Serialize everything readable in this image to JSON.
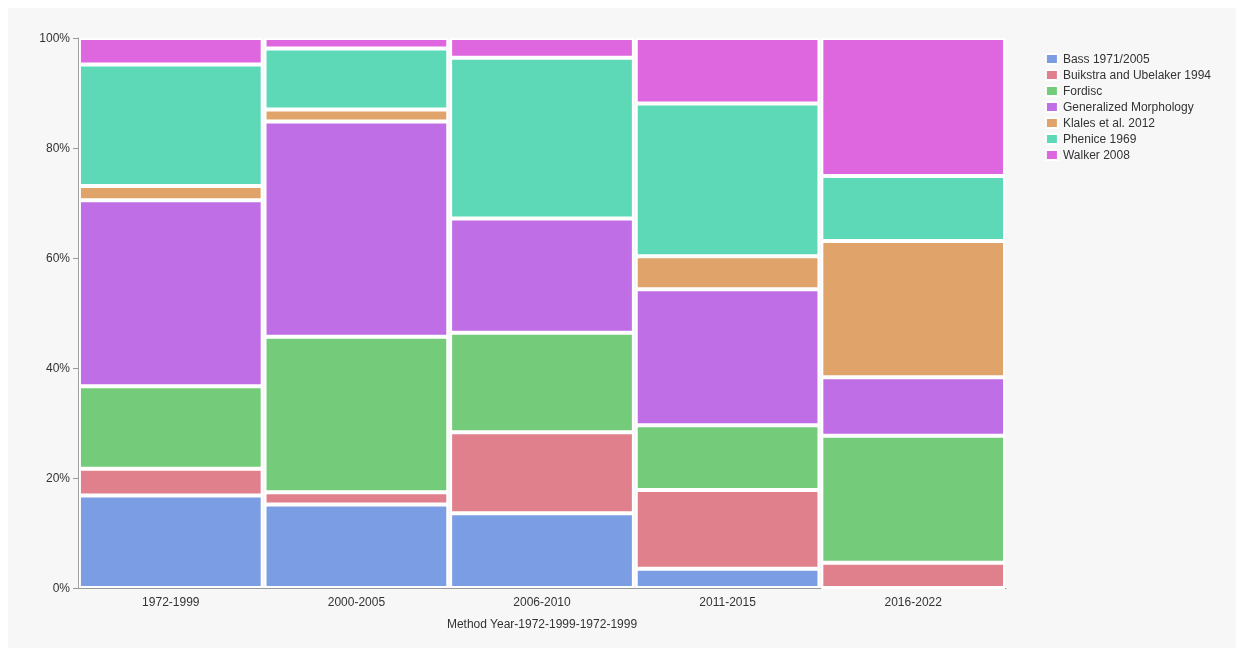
{
  "chart_data": {
    "type": "bar",
    "stacked": true,
    "xlabel": "Method Year-1972-1999-1972-1999",
    "categories": [
      "1972-1999",
      "2000-2005",
      "2006-2010",
      "2011-2015",
      "2016-2022"
    ],
    "series": [
      {
        "name": "Bass 1971/2005",
        "color": "#7b9de3",
        "values": [
          16.8,
          15.2,
          13.6,
          3.5,
          0
        ]
      },
      {
        "name": "Buikstra and Ubelaker 1994",
        "color": "#e0808c",
        "values": [
          4.9,
          2.2,
          14.7,
          14.3,
          4.6
        ]
      },
      {
        "name": "Fordisc",
        "color": "#74cc7a",
        "values": [
          15.0,
          28.3,
          18.1,
          11.8,
          23.1
        ]
      },
      {
        "name": "Generalized Morphology",
        "color": "#bf6ee6",
        "values": [
          33.8,
          39.1,
          20.8,
          24.7,
          10.6
        ]
      },
      {
        "name": "Klales et al. 2012",
        "color": "#e0a46a",
        "values": [
          2.6,
          2.2,
          0,
          6.0,
          24.8
        ]
      },
      {
        "name": "Phenice 1969",
        "color": "#5dd9b8",
        "values": [
          22.1,
          11.1,
          29.2,
          27.8,
          11.8
        ]
      },
      {
        "name": "Walker 2008",
        "color": "#de66de",
        "values": [
          4.8,
          1.9,
          3.6,
          11.9,
          25.1
        ]
      }
    ],
    "ylim": [
      0,
      100
    ],
    "yticks": [
      {
        "value": 0,
        "label": "0%"
      },
      {
        "value": 20,
        "label": "20%"
      },
      {
        "value": 40,
        "label": "40%"
      },
      {
        "value": 60,
        "label": "60%"
      },
      {
        "value": 80,
        "label": "80%"
      },
      {
        "value": 100,
        "label": "100%"
      }
    ],
    "grid": false,
    "legend": "top right"
  }
}
